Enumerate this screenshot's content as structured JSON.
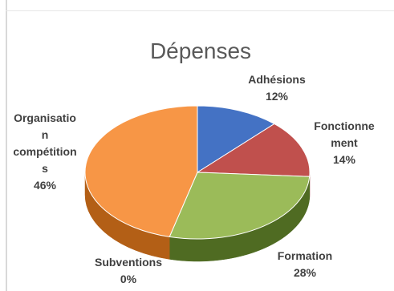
{
  "chart_data": {
    "type": "pie",
    "title": "Dépenses",
    "slices": [
      {
        "category": "Adhésions",
        "value": 12,
        "value_label": "12%",
        "color": "#4472C4",
        "dark": "#2e4f88",
        "label_lines": [
          "Adhésions",
          "12%"
        ]
      },
      {
        "category": "Fonctionnement",
        "value": 14,
        "value_label": "14%",
        "color": "#C0504D",
        "dark": "#8a3431",
        "label_lines": [
          "Fonctionne",
          "ment",
          "14%"
        ]
      },
      {
        "category": "Formation",
        "value": 28,
        "value_label": "28%",
        "color": "#9BBB59",
        "dark": "#4f6b22",
        "label_lines": [
          "Formation",
          "28%"
        ]
      },
      {
        "category": "Subventions",
        "value": 0,
        "value_label": "0%",
        "color": "#8064A2",
        "dark": "#5a4574",
        "label_lines": [
          "Subventions",
          "0%"
        ]
      },
      {
        "category": "Organisation compétitions",
        "value": 46,
        "value_label": "46%",
        "color": "#F79646",
        "dark": "#b35f16",
        "label_lines": [
          "Organisatio",
          "n",
          "compétition",
          "s",
          "46%"
        ]
      }
    ],
    "legend": "none",
    "style": "3d-pie"
  }
}
